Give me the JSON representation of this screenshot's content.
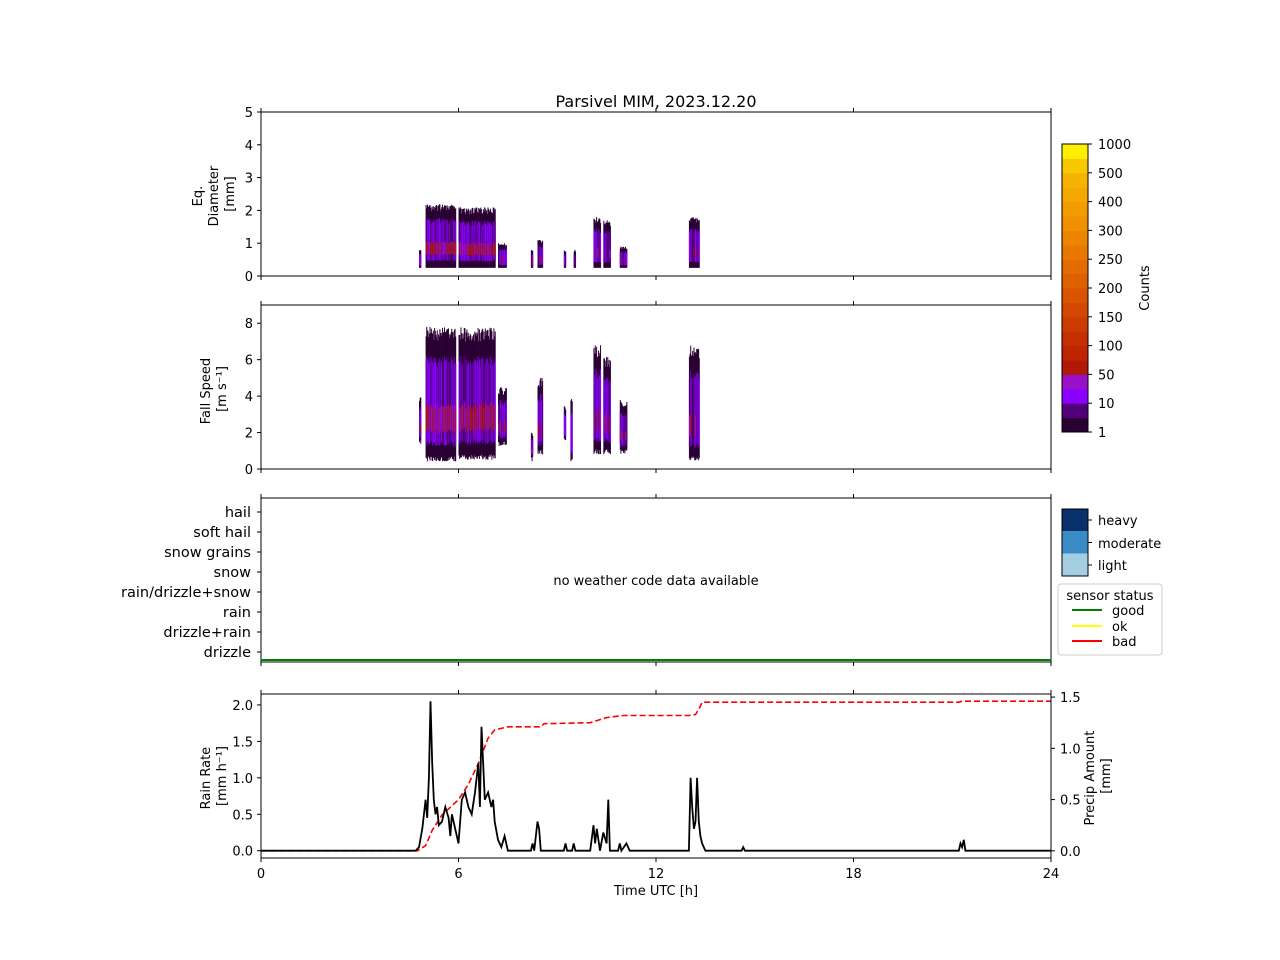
{
  "title": "Parsivel MIM, 2023.12.20",
  "colors": {
    "counts_bins": [
      "#2a0033",
      "#52007a",
      "#8a00ff",
      "#9a10c8",
      "#b01808",
      "#bf2400",
      "#c63000",
      "#cc3c00",
      "#d24800",
      "#d85400",
      "#de6000",
      "#e46c00",
      "#e87800",
      "#ec8400",
      "#f09000",
      "#f29c00",
      "#f4a800",
      "#f6b400",
      "#f8c800",
      "#ffee00"
    ],
    "weather_light": "#a6cee3",
    "weather_moderate": "#3a8bc5",
    "weather_heavy": "#08306b",
    "status_good": "#008000",
    "status_ok": "#ffff00",
    "status_bad": "#ff0000",
    "rain_rate_line": "#000000",
    "precip_line": "#ff0000"
  },
  "colorbar": {
    "label": "Counts",
    "ticks": [
      "1",
      "10",
      "50",
      "100",
      "150",
      "200",
      "250",
      "300",
      "400",
      "500",
      "1000"
    ]
  },
  "weather_legend": {
    "items": [
      "light",
      "moderate",
      "heavy"
    ]
  },
  "status_legend": {
    "title": "sensor status",
    "items": [
      "good",
      "ok",
      "bad"
    ]
  },
  "xaxis": {
    "label": "Time UTC [h]",
    "ticks": [
      "0",
      "6",
      "12",
      "18",
      "24"
    ]
  },
  "chart_data": [
    {
      "type": "heatmap",
      "ylabel": [
        "Eq.",
        "Diameter",
        "[mm]"
      ],
      "yticks": [
        "0",
        "1",
        "2",
        "3",
        "4",
        "5"
      ],
      "xlim": [
        0,
        24
      ],
      "ylim": [
        0,
        5
      ],
      "bursts": [
        {
          "t0": 4.8,
          "t1": 4.85,
          "top": 0.8,
          "lvl": 1
        },
        {
          "t0": 5.0,
          "t1": 5.9,
          "top": 2.2,
          "lvl": 2
        },
        {
          "t0": 6.0,
          "t1": 7.1,
          "top": 2.1,
          "lvl": 2
        },
        {
          "t0": 7.2,
          "t1": 7.45,
          "top": 1.0,
          "lvl": 1
        },
        {
          "t0": 8.2,
          "t1": 8.25,
          "top": 0.8,
          "lvl": 1
        },
        {
          "t0": 8.4,
          "t1": 8.55,
          "top": 1.1,
          "lvl": 1
        },
        {
          "t0": 9.2,
          "t1": 9.25,
          "top": 0.8,
          "lvl": 1
        },
        {
          "t0": 9.5,
          "t1": 9.55,
          "top": 0.8,
          "lvl": 1
        },
        {
          "t0": 10.1,
          "t1": 10.3,
          "top": 1.8,
          "lvl": 1
        },
        {
          "t0": 10.4,
          "t1": 10.6,
          "top": 1.7,
          "lvl": 1
        },
        {
          "t0": 10.9,
          "t1": 11.1,
          "top": 0.9,
          "lvl": 1
        },
        {
          "t0": 13.0,
          "t1": 13.3,
          "top": 1.8,
          "lvl": 1
        }
      ]
    },
    {
      "type": "heatmap",
      "ylabel": [
        "Fall Speed",
        "[m s⁻¹]"
      ],
      "yticks": [
        "0",
        "2",
        "4",
        "6",
        "8"
      ],
      "xlim": [
        0,
        24
      ],
      "ylim": [
        0,
        9
      ],
      "bursts": [
        {
          "t0": 4.8,
          "t1": 4.85,
          "bot": 1.3,
          "top": 4.0,
          "lvl": 1
        },
        {
          "t0": 5.0,
          "t1": 5.9,
          "bot": 0.4,
          "top": 7.8,
          "lvl": 2
        },
        {
          "t0": 6.0,
          "t1": 7.1,
          "bot": 0.5,
          "top": 7.8,
          "lvl": 2
        },
        {
          "t0": 7.2,
          "t1": 7.45,
          "bot": 1.2,
          "top": 4.5,
          "lvl": 1
        },
        {
          "t0": 8.2,
          "t1": 8.25,
          "bot": 0.4,
          "top": 2.0,
          "lvl": 1
        },
        {
          "t0": 8.4,
          "t1": 8.55,
          "bot": 0.8,
          "top": 5.0,
          "lvl": 1
        },
        {
          "t0": 9.2,
          "t1": 9.25,
          "bot": 1.5,
          "top": 3.5,
          "lvl": 1
        },
        {
          "t0": 9.4,
          "t1": 9.45,
          "bot": 0.3,
          "top": 4.0,
          "lvl": 1
        },
        {
          "t0": 10.1,
          "t1": 10.3,
          "bot": 0.8,
          "top": 6.8,
          "lvl": 1
        },
        {
          "t0": 10.4,
          "t1": 10.6,
          "bot": 0.8,
          "top": 6.2,
          "lvl": 1
        },
        {
          "t0": 10.9,
          "t1": 11.1,
          "bot": 0.8,
          "top": 3.8,
          "lvl": 1
        },
        {
          "t0": 13.0,
          "t1": 13.3,
          "bot": 0.4,
          "top": 6.8,
          "lvl": 1
        }
      ]
    },
    {
      "type": "table",
      "categories": [
        "drizzle",
        "drizzle+rain",
        "rain",
        "rain/drizzle+snow",
        "snow",
        "snow grains",
        "soft hail",
        "hail"
      ],
      "annotation": "no weather code data available",
      "status": "good",
      "xlim": [
        0,
        24
      ]
    },
    {
      "type": "line",
      "ylabel": [
        "Rain Rate",
        "[mm h⁻¹]"
      ],
      "ylabel2": [
        "Precip Amount",
        "[mm]"
      ],
      "yticks": [
        "0.0",
        "0.5",
        "1.0",
        "1.5",
        "2.0"
      ],
      "yticks2": [
        "0.0",
        "0.5",
        "1.0",
        "1.5"
      ],
      "xlim": [
        0,
        24
      ],
      "ylim": [
        -0.1,
        2.15
      ],
      "ylim2": [
        -0.07,
        1.53
      ],
      "series": [
        {
          "x": [
            0,
            4.7,
            4.8,
            4.9,
            5.0,
            5.05,
            5.1,
            5.15,
            5.2,
            5.25,
            5.3,
            5.35,
            5.4,
            5.5,
            5.6,
            5.7,
            5.75,
            5.8,
            5.9,
            6.0,
            6.1,
            6.2,
            6.3,
            6.4,
            6.5,
            6.6,
            6.65,
            6.7,
            6.8,
            6.9,
            7.0,
            7.05,
            7.1,
            7.2,
            7.3,
            7.4,
            7.5,
            8.2,
            8.25,
            8.3,
            8.4,
            8.45,
            8.5,
            8.6,
            9.2,
            9.25,
            9.3,
            9.45,
            9.5,
            9.55,
            10.0,
            10.1,
            10.15,
            10.2,
            10.3,
            10.4,
            10.5,
            10.55,
            10.6,
            10.7,
            10.85,
            10.9,
            10.95,
            11.1,
            11.2,
            13.0,
            13.05,
            13.1,
            13.15,
            13.2,
            13.25,
            13.3,
            13.35,
            13.4,
            13.5,
            14.6,
            14.65,
            14.7,
            21.2,
            21.25,
            21.3,
            21.35,
            21.4,
            21.5,
            24
          ],
          "y": [
            0,
            0,
            0.05,
            0.3,
            0.7,
            0.45,
            1.0,
            2.05,
            1.2,
            0.7,
            0.5,
            0.6,
            0.35,
            0.4,
            0.6,
            0.45,
            0.2,
            0.5,
            0.3,
            0.1,
            0.7,
            0.8,
            0.6,
            0.5,
            0.8,
            1.2,
            0.6,
            1.7,
            0.7,
            0.8,
            0.6,
            0.7,
            0.4,
            0.15,
            0.05,
            0.2,
            0,
            0,
            0.1,
            0,
            0.4,
            0.3,
            0,
            0,
            0,
            0.1,
            0,
            0,
            0.1,
            0,
            0,
            0.35,
            0.1,
            0.3,
            0,
            0.25,
            0.1,
            0.7,
            0,
            0,
            0,
            0.1,
            0,
            0.1,
            0,
            0,
            1.0,
            0.6,
            0.3,
            0.4,
            1.0,
            0.4,
            0.2,
            0.1,
            0,
            0,
            0.05,
            0,
            0,
            0.1,
            0.05,
            0.15,
            0,
            0,
            0
          ]
        },
        {
          "x": [
            0,
            4.75,
            5.0,
            5.2,
            5.5,
            6.0,
            6.3,
            6.6,
            6.9,
            7.1,
            7.5,
            8.5,
            8.6,
            10.0,
            10.3,
            10.5,
            11.0,
            13.0,
            13.2,
            13.3,
            13.4,
            21.2,
            21.3,
            24
          ],
          "y": [
            0,
            0,
            0.05,
            0.2,
            0.35,
            0.5,
            0.65,
            0.85,
            1.1,
            1.18,
            1.21,
            1.21,
            1.24,
            1.25,
            1.28,
            1.3,
            1.32,
            1.32,
            1.33,
            1.38,
            1.45,
            1.45,
            1.46,
            1.46
          ]
        }
      ]
    }
  ]
}
